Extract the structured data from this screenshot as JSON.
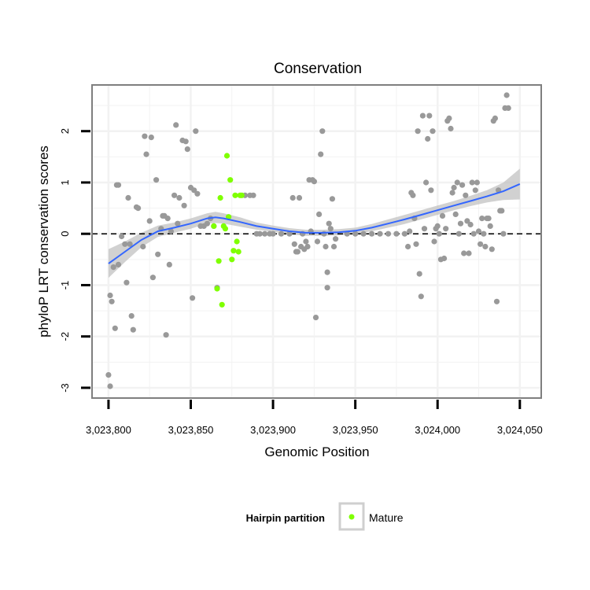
{
  "chart_data": {
    "type": "scatter",
    "title": "Conservation",
    "xlabel": "Genomic Position",
    "ylabel": "phyloP LRT conservation scores",
    "xlim": [
      3023790,
      3024063
    ],
    "ylim": [
      -3.2,
      2.9
    ],
    "x_ticks": [
      3023800,
      3023850,
      3023900,
      3023950,
      3024000,
      3024050
    ],
    "x_tick_labels": [
      "3,023,800",
      "3,023,850",
      "3,023,900",
      "3,023,950",
      "3,024,000",
      "3,024,050"
    ],
    "y_ticks": [
      -3,
      -2,
      -1,
      0,
      1,
      2
    ],
    "y_tick_labels": [
      "-3",
      "-2",
      "-1",
      "0",
      "1",
      "2"
    ],
    "reference_line": {
      "y": 0,
      "style": "dashed"
    },
    "legend": {
      "title": "Hairpin partition",
      "position": "bottom",
      "entries": [
        "Mature"
      ]
    },
    "colors": {
      "other": "#999999",
      "mature": "#7fff00",
      "smooth": "#3366ff",
      "ribbon": "#bdbdbd",
      "panel_border": "#7f7f7f",
      "grid": "#f2f2f2"
    },
    "series": [
      {
        "name": "Other",
        "points": [
          [
            3023800,
            -2.75
          ],
          [
            3023801,
            -2.97
          ],
          [
            3023801,
            -1.2
          ],
          [
            3023802,
            -1.32
          ],
          [
            3023803,
            -0.65
          ],
          [
            3023804,
            -1.84
          ],
          [
            3023805,
            0.95
          ],
          [
            3023806,
            0.95
          ],
          [
            3023806,
            -0.6
          ],
          [
            3023808,
            -0.05
          ],
          [
            3023810,
            -0.2
          ],
          [
            3023811,
            -0.95
          ],
          [
            3023812,
            0.7
          ],
          [
            3023813,
            -0.2
          ],
          [
            3023814,
            -1.6
          ],
          [
            3023815,
            -1.87
          ],
          [
            3023817,
            0.52
          ],
          [
            3023818,
            0.5
          ],
          [
            3023821,
            -0.25
          ],
          [
            3023822,
            1.9
          ],
          [
            3023823,
            1.55
          ],
          [
            3023825,
            0.25
          ],
          [
            3023826,
            1.88
          ],
          [
            3023827,
            -0.85
          ],
          [
            3023829,
            1.05
          ],
          [
            3023830,
            -0.4
          ],
          [
            3023832,
            0.1
          ],
          [
            3023833,
            0.35
          ],
          [
            3023834,
            0.35
          ],
          [
            3023835,
            -1.97
          ],
          [
            3023836,
            0.3
          ],
          [
            3023837,
            -0.6
          ],
          [
            3023838,
            0.05
          ],
          [
            3023840,
            0.75
          ],
          [
            3023841,
            2.12
          ],
          [
            3023842,
            0.2
          ],
          [
            3023843,
            0.7
          ],
          [
            3023845,
            1.82
          ],
          [
            3023846,
            0.55
          ],
          [
            3023847,
            1.8
          ],
          [
            3023848,
            1.65
          ],
          [
            3023850,
            0.9
          ],
          [
            3023851,
            -1.25
          ],
          [
            3023852,
            0.85
          ],
          [
            3023853,
            2.0
          ],
          [
            3023854,
            0.78
          ],
          [
            3023856,
            0.15
          ],
          [
            3023858,
            0.15
          ],
          [
            3023860,
            0.2
          ],
          [
            3023862,
            0.3
          ],
          [
            3023864,
            0.15
          ],
          [
            3023866,
            -1.05
          ],
          [
            3023883,
            0.75
          ],
          [
            3023886,
            0.75
          ],
          [
            3023888,
            0.75
          ],
          [
            3023890,
            0.0
          ],
          [
            3023892,
            0.0
          ],
          [
            3023895,
            0.0
          ],
          [
            3023898,
            0.0
          ],
          [
            3023900,
            0.0
          ],
          [
            3023905,
            0.0
          ],
          [
            3023910,
            0.0
          ],
          [
            3023912,
            0.7
          ],
          [
            3023913,
            -0.2
          ],
          [
            3023914,
            -0.35
          ],
          [
            3023915,
            -0.35
          ],
          [
            3023916,
            0.7
          ],
          [
            3023917,
            -0.25
          ],
          [
            3023918,
            0.0
          ],
          [
            3023919,
            -0.3
          ],
          [
            3023920,
            -0.15
          ],
          [
            3023921,
            -0.25
          ],
          [
            3023922,
            1.05
          ],
          [
            3023923,
            0.05
          ],
          [
            3023924,
            1.05
          ],
          [
            3023925,
            1.02
          ],
          [
            3023926,
            -1.63
          ],
          [
            3023927,
            -0.15
          ],
          [
            3023928,
            0.38
          ],
          [
            3023929,
            1.55
          ],
          [
            3023930,
            2.0
          ],
          [
            3023931,
            0.0
          ],
          [
            3023932,
            -0.25
          ],
          [
            3023933,
            -0.75
          ],
          [
            3023933,
            -1.05
          ],
          [
            3023934,
            0.2
          ],
          [
            3023935,
            0.1
          ],
          [
            3023936,
            0.68
          ],
          [
            3023937,
            -0.25
          ],
          [
            3023938,
            -0.1
          ],
          [
            3023945,
            0.0
          ],
          [
            3023950,
            0.0
          ],
          [
            3023955,
            0.0
          ],
          [
            3023960,
            0.0
          ],
          [
            3023965,
            0.0
          ],
          [
            3023970,
            0.0
          ],
          [
            3023975,
            0.0
          ],
          [
            3023980,
            0.0
          ],
          [
            3023982,
            -0.25
          ],
          [
            3023983,
            0.05
          ],
          [
            3023984,
            0.8
          ],
          [
            3023985,
            0.75
          ],
          [
            3023986,
            0.3
          ],
          [
            3023987,
            -0.2
          ],
          [
            3023988,
            2.0
          ],
          [
            3023989,
            -0.78
          ],
          [
            3023990,
            -1.22
          ],
          [
            3023991,
            2.3
          ],
          [
            3023992,
            0.1
          ],
          [
            3023993,
            1.0
          ],
          [
            3023994,
            1.85
          ],
          [
            3023995,
            2.3
          ],
          [
            3023996,
            0.85
          ],
          [
            3023997,
            2.0
          ],
          [
            3023998,
            -0.15
          ],
          [
            3023999,
            0.1
          ],
          [
            3024000,
            0.15
          ],
          [
            3024001,
            0.0
          ],
          [
            3024002,
            -0.5
          ],
          [
            3024003,
            0.35
          ],
          [
            3024004,
            -0.48
          ],
          [
            3024005,
            0.1
          ],
          [
            3024006,
            2.2
          ],
          [
            3024007,
            2.25
          ],
          [
            3024008,
            2.05
          ],
          [
            3024009,
            0.8
          ],
          [
            3024010,
            0.9
          ],
          [
            3024011,
            0.38
          ],
          [
            3024012,
            1.0
          ],
          [
            3024013,
            0.0
          ],
          [
            3024014,
            0.2
          ],
          [
            3024015,
            0.95
          ],
          [
            3024016,
            -0.38
          ],
          [
            3024017,
            0.75
          ],
          [
            3024018,
            0.25
          ],
          [
            3024019,
            -0.38
          ],
          [
            3024020,
            0.18
          ],
          [
            3024021,
            1.0
          ],
          [
            3024022,
            0.0
          ],
          [
            3024023,
            0.85
          ],
          [
            3024024,
            1.0
          ],
          [
            3024025,
            0.05
          ],
          [
            3024026,
            -0.2
          ],
          [
            3024027,
            0.3
          ],
          [
            3024028,
            0.0
          ],
          [
            3024029,
            -0.25
          ],
          [
            3024030,
            0.3
          ],
          [
            3024031,
            0.3
          ],
          [
            3024032,
            0.15
          ],
          [
            3024033,
            -0.3
          ],
          [
            3024034,
            2.2
          ],
          [
            3024035,
            2.25
          ],
          [
            3024036,
            -1.32
          ],
          [
            3024037,
            0.85
          ],
          [
            3024038,
            0.45
          ],
          [
            3024039,
            0.45
          ],
          [
            3024040,
            0.0
          ],
          [
            3024041,
            2.45
          ],
          [
            3024042,
            2.7
          ],
          [
            3024043,
            2.45
          ]
        ]
      },
      {
        "name": "Mature",
        "points": [
          [
            3023864,
            0.15
          ],
          [
            3023866,
            -1.07
          ],
          [
            3023867,
            -0.53
          ],
          [
            3023868,
            0.7
          ],
          [
            3023869,
            -1.38
          ],
          [
            3023870,
            0.15
          ],
          [
            3023871,
            0.1
          ],
          [
            3023872,
            1.52
          ],
          [
            3023873,
            0.33
          ],
          [
            3023874,
            1.05
          ],
          [
            3023875,
            -0.5
          ],
          [
            3023876,
            -0.33
          ],
          [
            3023877,
            0.75
          ],
          [
            3023878,
            -0.15
          ],
          [
            3023879,
            -0.35
          ],
          [
            3023880,
            0.75
          ],
          [
            3023881,
            0.75
          ]
        ]
      }
    ],
    "smooth": {
      "x": [
        3023800,
        3023810,
        3023820,
        3023830,
        3023840,
        3023850,
        3023860,
        3023865,
        3023870,
        3023880,
        3023890,
        3023900,
        3023910,
        3023920,
        3023930,
        3023940,
        3023950,
        3023960,
        3023970,
        3023980,
        3023990,
        3024000,
        3024010,
        3024020,
        3024030,
        3024040,
        3024050
      ],
      "y": [
        -0.58,
        -0.35,
        -0.12,
        0.05,
        0.12,
        0.2,
        0.3,
        0.32,
        0.3,
        0.23,
        0.15,
        0.1,
        0.05,
        0.02,
        0.02,
        0.03,
        0.06,
        0.12,
        0.2,
        0.28,
        0.37,
        0.46,
        0.55,
        0.64,
        0.73,
        0.83,
        0.97
      ],
      "se": [
        0.28,
        0.2,
        0.14,
        0.11,
        0.1,
        0.1,
        0.1,
        0.11,
        0.1,
        0.09,
        0.07,
        0.06,
        0.06,
        0.06,
        0.06,
        0.06,
        0.06,
        0.07,
        0.08,
        0.09,
        0.09,
        0.09,
        0.09,
        0.1,
        0.12,
        0.17,
        0.3
      ]
    }
  }
}
